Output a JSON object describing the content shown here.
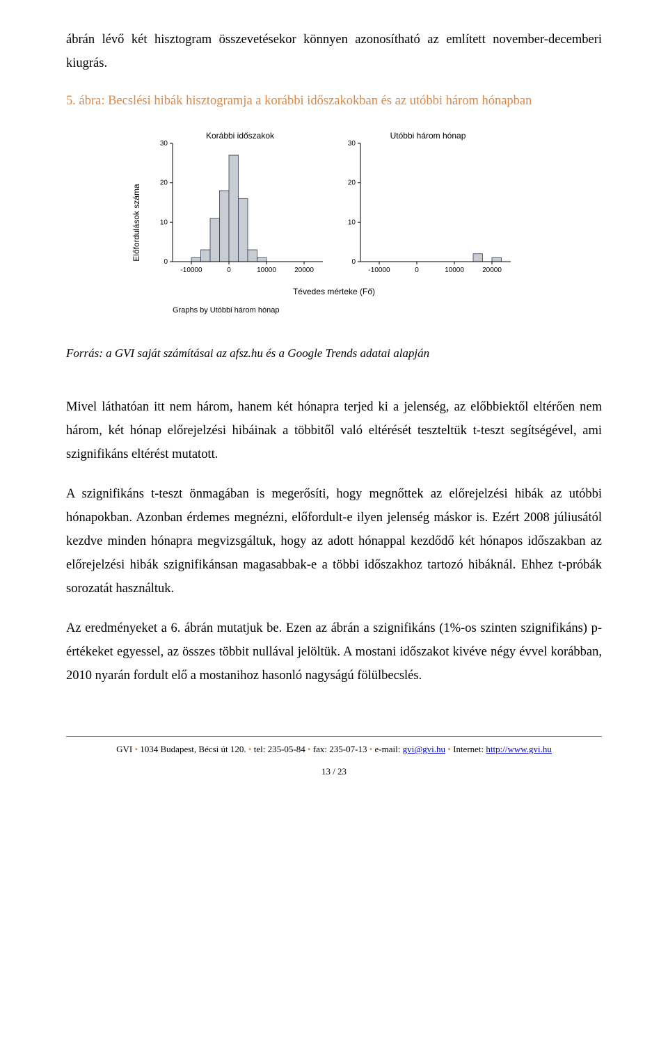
{
  "para_lead": "ábrán lévő két hisztogram összevetésekor könnyen azonosítható az említett november-decemberi kiugrás.",
  "figure_title": "5. ábra: Becslési hibák hisztogramja a korábbi időszakokban és az utóbbi három hónapban",
  "chart": {
    "type": "histogram",
    "panel_titles": [
      "Korábbi időszakok",
      "Utóbbi három hónap"
    ],
    "y_label": "Előfordulások száma",
    "x_label": "Tévedes mérteke (Fő)",
    "graphs_by": "Graphs by Utóbbi három hónap",
    "y_ticks": [
      0,
      10,
      20,
      30
    ],
    "y_lim": [
      0,
      30
    ],
    "x_ticks": [
      -10000,
      0,
      10000,
      20000
    ],
    "x_lim": [
      -15000,
      25000
    ],
    "bar_fill": "#c9cdd3",
    "bar_stroke": "#2f3a55",
    "axis_color": "#000000",
    "grid_color": "#dcdcdc",
    "tick_fontsize": 10,
    "label_fontsize": 12,
    "title_fontsize": 12,
    "background_color": "#ffffff",
    "bins": [
      -15000,
      -12500,
      -10000,
      -7500,
      -5000,
      -2500,
      0,
      2500,
      5000,
      7500,
      10000,
      12500,
      15000,
      17500,
      20000,
      22500,
      25000
    ],
    "left_counts": [
      0,
      0,
      1,
      3,
      11,
      18,
      27,
      16,
      3,
      1,
      0,
      0,
      0,
      0,
      0,
      0
    ],
    "right_counts": [
      0,
      0,
      0,
      0,
      0,
      0,
      0,
      0,
      0,
      0,
      0,
      0,
      2,
      0,
      1,
      0
    ]
  },
  "source_line": "Forrás: a GVI saját számításai az afsz.hu és a Google Trends adatai alapján",
  "para1": "Mivel láthatóan itt nem három, hanem két hónapra terjed ki a jelenség, az előbbiektől eltérően nem három, két hónap előrejelzési hibáinak a többitől való eltérését teszteltük t-teszt segítségével, ami szignifikáns eltérést mutatott.",
  "para2": "A szignifikáns t-teszt önmagában is megerősíti, hogy megnőttek az előrejelzési hibák az utóbbi hónapokban. Azonban érdemes megnézni, előfordult-e ilyen jelenség máskor is. Ezért 2008 júliusától kezdve minden hónapra megvizsgáltuk, hogy az adott hónappal kezdődő két hónapos időszakban az előrejelzési hibák szignifikánsan magasabbak-e a többi időszakhoz tartozó hibáknál. Ehhez t-próbák sorozatát használtuk.",
  "para3": "Az eredményeket a 6. ábrán mutatjuk be. Ezen az ábrán a szignifikáns (1%-os szinten szignifikáns) p-értékeket egyessel, az összes többit nullával jelöltük. A mostani időszakot kivéve négy évvel korábban, 2010 nyarán fordult elő a mostanihoz hasonló nagyságú fölülbecslés.",
  "footer": {
    "org": "GVI",
    "address": "1034 Budapest, Bécsi út 120.",
    "tel_label": "tel:",
    "tel": "235-05-84",
    "fax_label": "fax:",
    "fax": "235-07-13",
    "email_label": "e-mail:",
    "email": "gvi@gvi.hu",
    "net_label": "Internet:",
    "url": "http://www.gvi.hu",
    "page": "13 / 23"
  }
}
